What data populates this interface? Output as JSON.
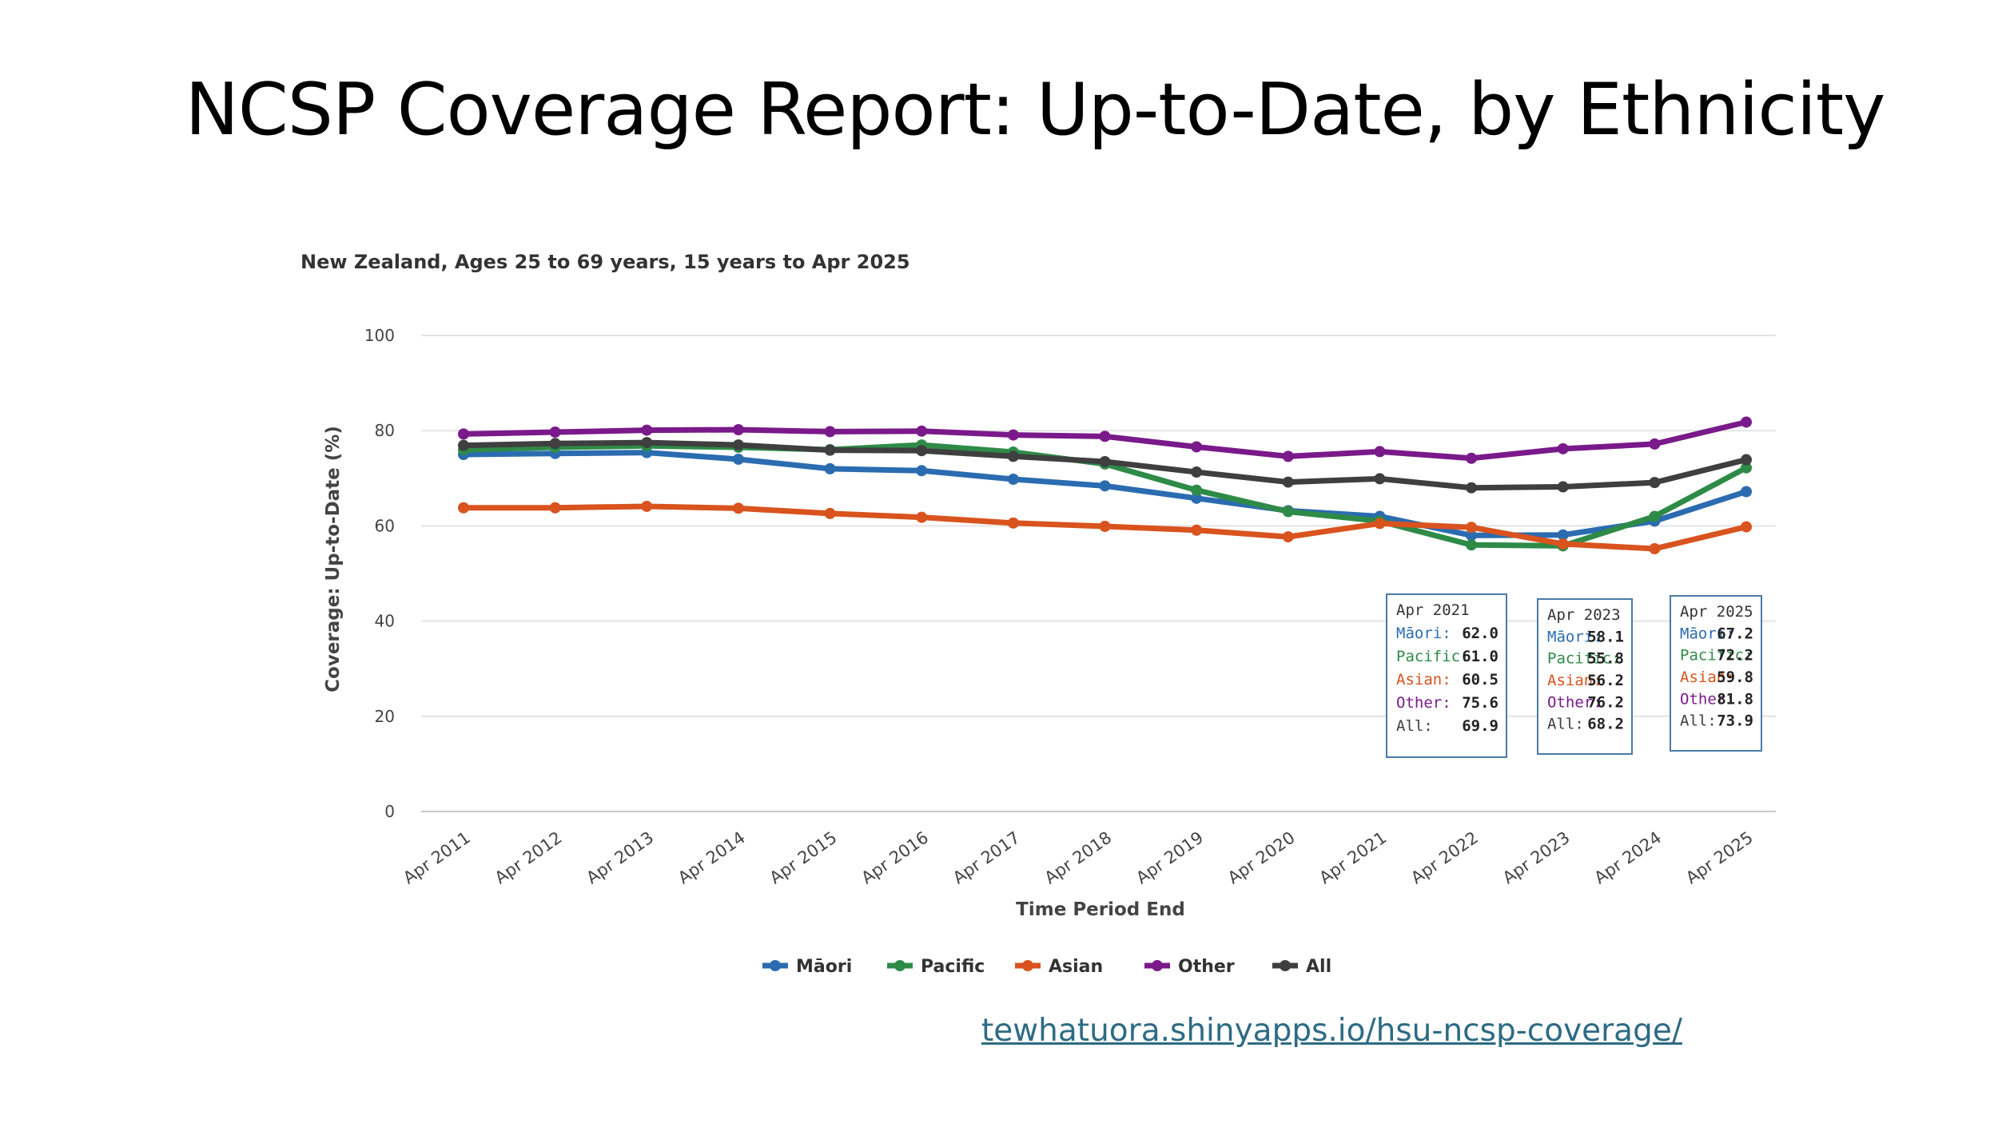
{
  "slide": {
    "title": "NCSP Coverage Report: Up-to-Date, by Ethnicity",
    "link": "tewhatuora.shinyapps.io/hsu-ncsp-coverage/"
  },
  "chart_data": {
    "type": "line",
    "title": "New Zealand, Ages 25 to 69 years, 15 years to Apr 2025",
    "xlabel": "Time Period End",
    "ylabel": "Coverage: Up-to-Date (%)",
    "ylim": [
      0,
      100
    ],
    "yticks": [
      0,
      20,
      40,
      60,
      80,
      100
    ],
    "grid": true,
    "legend_position": "bottom",
    "categories": [
      "Apr 2011",
      "Apr 2012",
      "Apr 2013",
      "Apr 2014",
      "Apr 2015",
      "Apr 2016",
      "Apr 2017",
      "Apr 2018",
      "Apr 2019",
      "Apr 2020",
      "Apr 2021",
      "Apr 2022",
      "Apr 2023",
      "Apr 2024",
      "Apr 2025"
    ],
    "series": [
      {
        "name": "Māori",
        "color": "#2b6cb0",
        "values": [
          75.0,
          75.2,
          75.4,
          74.0,
          72.0,
          71.6,
          69.8,
          68.4,
          65.8,
          63.2,
          62.0,
          58.0,
          58.1,
          61.0,
          67.2
        ]
      },
      {
        "name": "Pacific",
        "color": "#2e8b47",
        "values": [
          76.0,
          76.5,
          76.8,
          76.5,
          76.0,
          77.0,
          75.5,
          73.0,
          67.5,
          63.0,
          61.0,
          56.0,
          55.8,
          62.0,
          72.2
        ]
      },
      {
        "name": "Asian",
        "color": "#d9531e",
        "values": [
          63.8,
          63.8,
          64.1,
          63.7,
          62.6,
          61.8,
          60.6,
          59.9,
          59.1,
          57.7,
          60.5,
          59.7,
          56.2,
          55.2,
          59.8
        ]
      },
      {
        "name": "Other",
        "color": "#7a1a8a",
        "values": [
          79.3,
          79.7,
          80.1,
          80.2,
          79.8,
          79.9,
          79.1,
          78.8,
          76.6,
          74.6,
          75.6,
          74.2,
          76.2,
          77.2,
          81.8
        ]
      },
      {
        "name": "All",
        "color": "#3f3f3f",
        "values": [
          76.9,
          77.3,
          77.5,
          77.0,
          75.9,
          75.8,
          74.6,
          73.5,
          71.3,
          69.2,
          69.9,
          68.0,
          68.2,
          69.1,
          73.9
        ]
      }
    ],
    "tooltips": [
      {
        "period": "Apr 2021",
        "rows": [
          {
            "label": "Māori:",
            "value": "62.0"
          },
          {
            "label": "Pacific:",
            "value": "61.0"
          },
          {
            "label": "Asian:",
            "value": "60.5"
          },
          {
            "label": "Other:",
            "value": "75.6"
          },
          {
            "label": "All:",
            "value": "69.9"
          }
        ]
      },
      {
        "period": "Apr 2023",
        "rows": [
          {
            "label": "Māori:",
            "value": "58.1"
          },
          {
            "label": "Pacific:",
            "value": "55.8"
          },
          {
            "label": "Asian:",
            "value": "56.2"
          },
          {
            "label": "Other:",
            "value": "76.2"
          },
          {
            "label": "All:",
            "value": "68.2"
          }
        ]
      },
      {
        "period": "Apr 2025",
        "rows": [
          {
            "label": "Māori:",
            "value": "67.2"
          },
          {
            "label": "Pacific:",
            "value": "72.2"
          },
          {
            "label": "Asian:",
            "value": "59.8"
          },
          {
            "label": "Other:",
            "value": "81.8"
          },
          {
            "label": "All:",
            "value": "73.9"
          }
        ]
      }
    ]
  }
}
